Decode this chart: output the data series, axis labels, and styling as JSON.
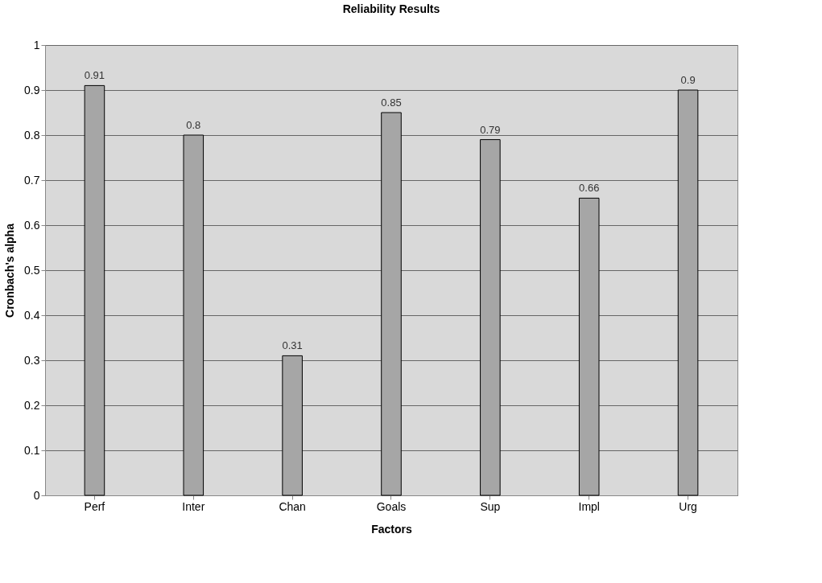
{
  "chart_data": {
    "type": "bar",
    "title": "Reliability Results",
    "xlabel": "Factors",
    "ylabel": "Cronbach's alpha",
    "categories": [
      "Perf",
      "Inter",
      "Chan",
      "Goals",
      "Sup",
      "Impl",
      "Urg"
    ],
    "values": [
      0.91,
      0.8,
      0.31,
      0.85,
      0.79,
      0.66,
      0.9
    ],
    "color": "#a6a6a6",
    "ylim": [
      0,
      1
    ],
    "yticks": [
      0,
      0.1,
      0.2,
      0.3,
      0.4,
      0.5,
      0.6,
      0.7,
      0.8,
      0.9,
      1
    ],
    "grid": "y",
    "data_labels": true
  }
}
